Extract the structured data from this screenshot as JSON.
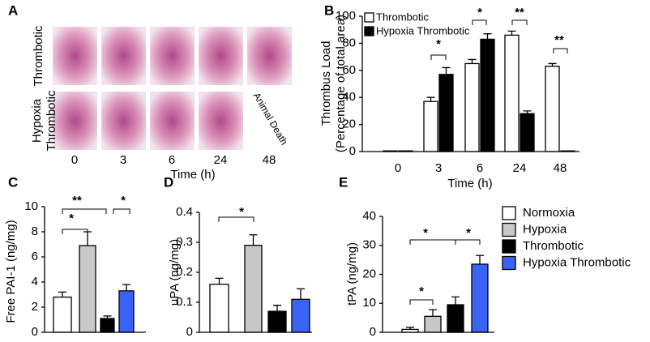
{
  "panel_a": {
    "letter": "A",
    "rows": [
      {
        "label_lines": [
          "Thrombotic"
        ]
      },
      {
        "label_lines": [
          "Hypoxia",
          "Thrombotic"
        ]
      }
    ],
    "columns": [
      "0",
      "3",
      "6",
      "24",
      "48"
    ],
    "xlabel": "Time (h)",
    "note": "Animal Death"
  },
  "legend": [
    {
      "name": "Normoxia",
      "color": "#ffffff"
    },
    {
      "name": "Hypoxia",
      "color": "#c8c8c8"
    },
    {
      "name": "Thrombotic",
      "color": "#000000"
    },
    {
      "name": "Hypoxia Thrombotic",
      "color": "#3a63f5"
    }
  ],
  "chart_data": [
    {
      "type": "bar",
      "letter": "B",
      "ylabel": [
        "Thrombus Load",
        "(Percentage of total area)"
      ],
      "xlabel": "Time (h)",
      "categories": [
        "0",
        "3",
        "6",
        "24",
        "48"
      ],
      "series": [
        {
          "name": "Thrombotic",
          "color": "#ffffff",
          "values": [
            0.5,
            37,
            65,
            86,
            63
          ],
          "errors": [
            0,
            3,
            3,
            3,
            2
          ]
        },
        {
          "name": "Hypoxia Thrombotic",
          "color": "#000000",
          "values": [
            0.5,
            57,
            83,
            28,
            0.5
          ],
          "errors": [
            0,
            5,
            4,
            2,
            0
          ]
        }
      ],
      "ylim": [
        0,
        100
      ],
      "yticks": [
        0,
        20,
        40,
        60,
        80,
        100
      ],
      "annotations": [
        "*",
        "*",
        "**",
        "**"
      ]
    },
    {
      "type": "bar",
      "letter": "C",
      "ylabel": "Free PAI-1 (ng/mg)",
      "values": [
        2.8,
        6.9,
        1.1,
        3.3
      ],
      "errors": [
        0.4,
        1.1,
        0.2,
        0.5
      ],
      "ylim": [
        0,
        10
      ],
      "yticks": [
        0,
        2,
        4,
        6,
        8,
        10
      ],
      "annotations": [
        "*",
        "**",
        "*"
      ]
    },
    {
      "type": "bar",
      "letter": "D",
      "ylabel": "uPA (ng/mg)",
      "values": [
        0.16,
        0.29,
        0.07,
        0.11
      ],
      "errors": [
        0.02,
        0.035,
        0.02,
        0.035
      ],
      "ylim": [
        0,
        0.4
      ],
      "yticks": [
        0,
        0.1,
        0.2,
        0.3,
        0.4
      ],
      "annotations": [
        "*"
      ]
    },
    {
      "type": "bar",
      "letter": "E",
      "ylabel": "tPA (ng/mg)",
      "values": [
        1,
        5.5,
        9.5,
        23.5
      ],
      "errors": [
        0.7,
        2.3,
        2.7,
        3
      ],
      "ylim": [
        0,
        40
      ],
      "yticks": [
        0,
        10,
        20,
        30,
        40
      ],
      "annotations": [
        "*",
        "*",
        "*"
      ]
    }
  ]
}
